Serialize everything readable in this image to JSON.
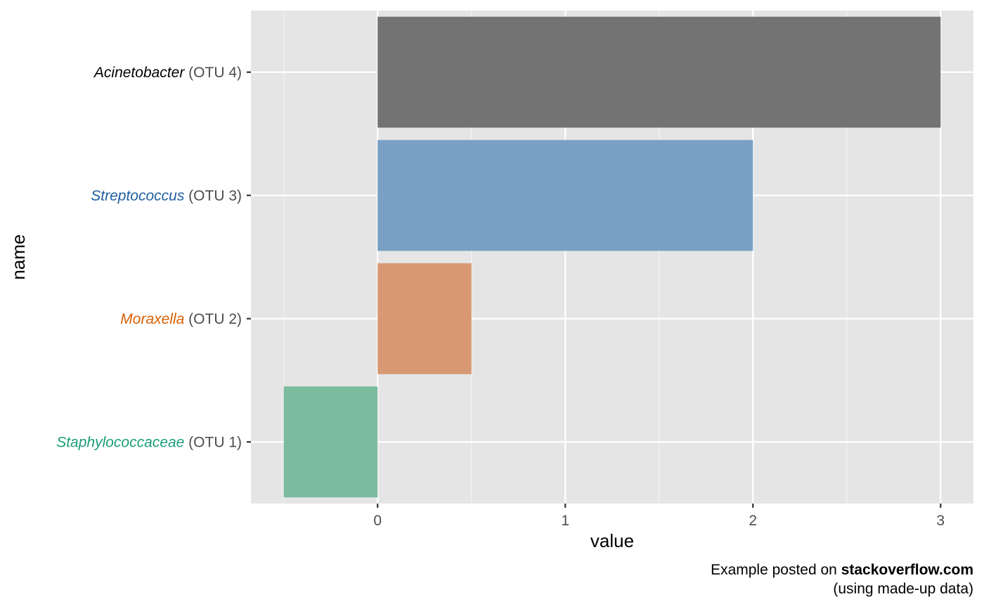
{
  "chart_data": {
    "type": "bar",
    "orientation": "horizontal",
    "xlabel": "value",
    "ylabel": "name",
    "xlim": [
      -0.675,
      3.175
    ],
    "x_ticks": [
      0,
      1,
      2,
      3
    ],
    "grid": true,
    "legend": "none",
    "categories": [
      {
        "genus": "Staphylococcaceae",
        "otu": "(OTU 1)",
        "label_color": "#1b9e77"
      },
      {
        "genus": "Moraxella",
        "otu": "(OTU 2)",
        "label_color": "#d95f02"
      },
      {
        "genus": "Streptococcus",
        "otu": "(OTU 3)",
        "label_color": "#1f5fa0"
      },
      {
        "genus": "Acinetobacter",
        "otu": "(OTU 4)",
        "label_color": "#000000"
      }
    ],
    "values": [
      -0.5,
      0.5,
      2,
      3
    ],
    "bar_colors": [
      "#7bbc9f",
      "#d99874",
      "#7aa0c5",
      "#737373"
    ],
    "caption": {
      "line1_prefix": "Example posted on ",
      "line1_bold": "stackoverflow.com",
      "line2": "(using made-up data)"
    }
  }
}
